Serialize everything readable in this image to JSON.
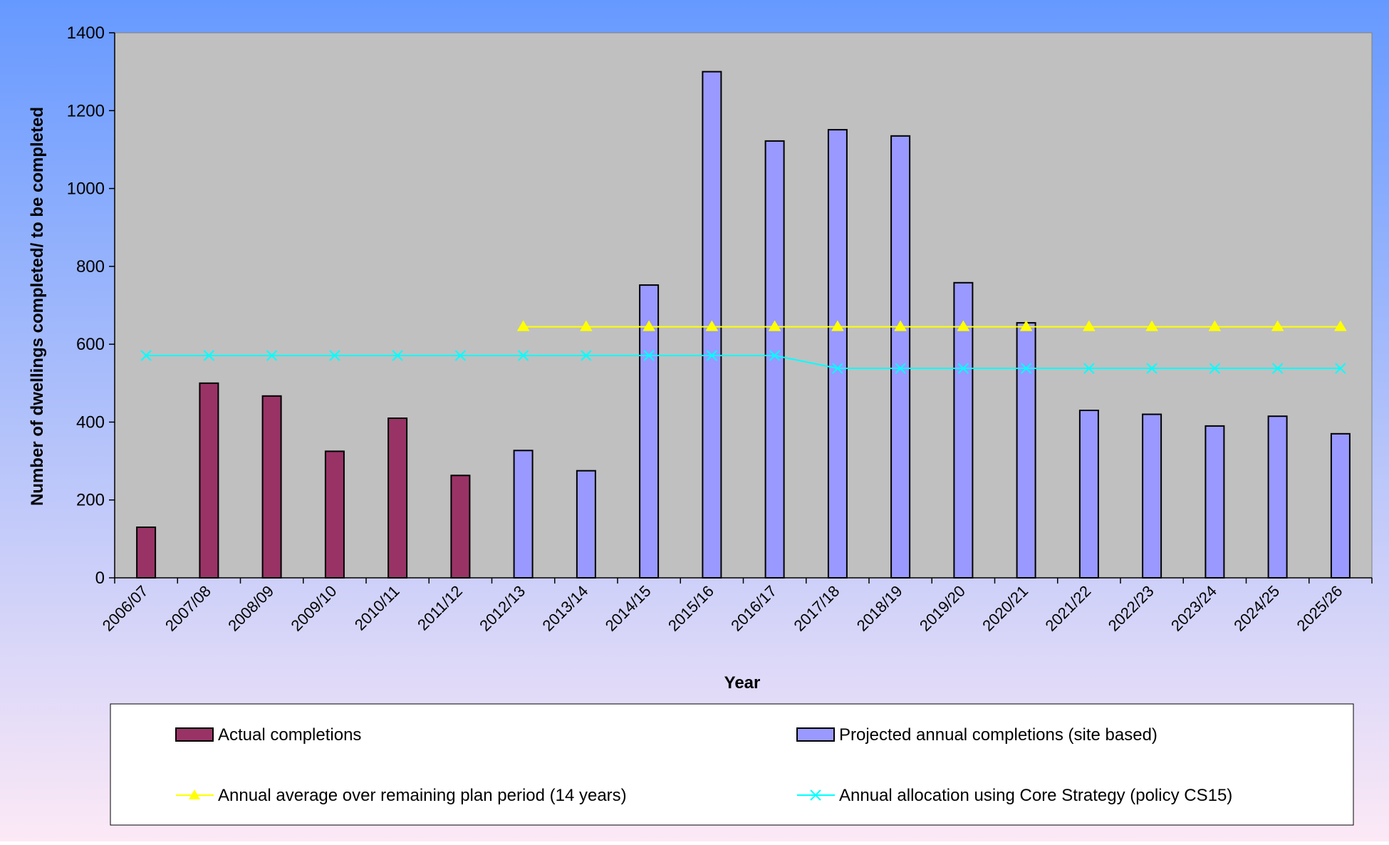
{
  "chart_data": {
    "type": "bar",
    "title": "",
    "xlabel": "Year",
    "ylabel": "Number of dwellings completed/ to be completed",
    "ylim": [
      0,
      1400
    ],
    "yticks": [
      0,
      200,
      400,
      600,
      800,
      1000,
      1200,
      1400
    ],
    "grid": false,
    "legend_position": "bottom",
    "categories": [
      "2006/07",
      "2007/08",
      "2008/09",
      "2009/10",
      "2010/11",
      "2011/12",
      "2012/13",
      "2013/14",
      "2014/15",
      "2015/16",
      "2016/17",
      "2017/18",
      "2018/19",
      "2019/20",
      "2020/21",
      "2021/22",
      "2022/23",
      "2023/24",
      "2024/25",
      "2025/26"
    ],
    "series": [
      {
        "name": "Actual completions",
        "kind": "bar",
        "color": "#993366",
        "values": [
          130,
          500,
          467,
          325,
          410,
          263,
          null,
          null,
          null,
          null,
          null,
          null,
          null,
          null,
          null,
          null,
          null,
          null,
          null,
          null
        ]
      },
      {
        "name": "Projected annual completions (site based)",
        "kind": "bar",
        "color": "#9999FF",
        "values": [
          null,
          null,
          null,
          null,
          null,
          null,
          327,
          275,
          752,
          1300,
          1122,
          1151,
          1135,
          758,
          655,
          430,
          420,
          390,
          415,
          370
        ]
      },
      {
        "name": "Annual average over remaining plan period (14 years)",
        "kind": "line",
        "marker": "triangle",
        "color": "#FFFF00",
        "values": [
          null,
          null,
          null,
          null,
          null,
          null,
          645,
          645,
          645,
          645,
          645,
          645,
          645,
          645,
          645,
          645,
          645,
          645,
          645,
          645
        ]
      },
      {
        "name": "Annual allocation using Core Strategy (policy CS15)",
        "kind": "line",
        "marker": "x",
        "color": "#00FFFF",
        "values": [
          571,
          571,
          571,
          571,
          571,
          571,
          571,
          571,
          571,
          571,
          571,
          538,
          538,
          538,
          538,
          538,
          538,
          538,
          538,
          538
        ]
      }
    ],
    "colors": {
      "background_top": "#6699FF",
      "background_bottom": "#FCE9F6",
      "plot_area": "#C0C0C0",
      "legend_background": "#FFFFFF"
    }
  }
}
